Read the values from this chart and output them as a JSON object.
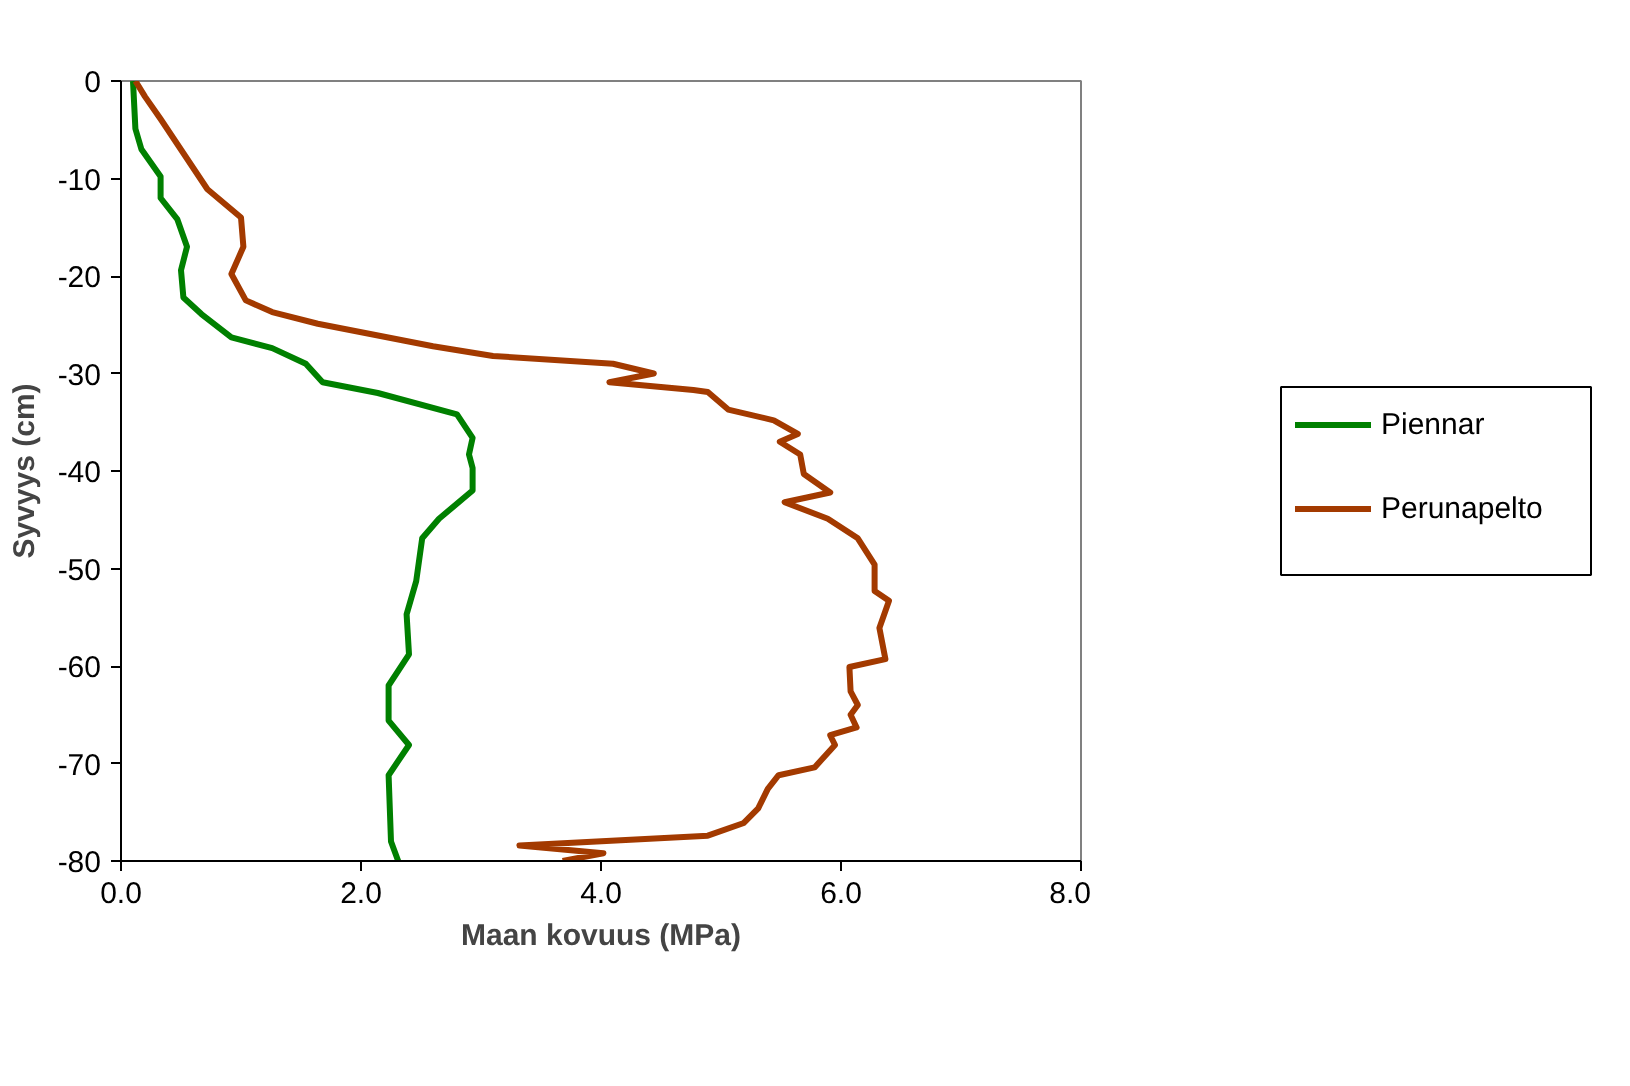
{
  "chart_data": {
    "type": "line",
    "xlabel": "Maan kovuus (MPa)",
    "ylabel": "Syvyys (cm)",
    "xlim": [
      0,
      8
    ],
    "ylim": [
      -80,
      0
    ],
    "xticks": [
      {
        "value": 0,
        "label": "0.0"
      },
      {
        "value": 2,
        "label": "2.0"
      },
      {
        "value": 4,
        "label": "4.0"
      },
      {
        "value": 6,
        "label": "6.0"
      },
      {
        "value": 8,
        "label": "8.0"
      }
    ],
    "yticks": [
      0,
      -10,
      -20,
      -30,
      -40,
      -50,
      -60,
      -70,
      -80
    ],
    "grid": false,
    "legend": "right",
    "marker": "none",
    "line_style": "solid",
    "series": [
      {
        "name": "Piennar",
        "color": "#008000",
        "x": [
          0.1,
          0.12,
          0.17,
          0.33,
          0.33,
          0.47,
          0.55,
          0.5,
          0.52,
          0.67,
          0.92,
          1.26,
          1.54,
          1.68,
          2.14,
          2.8,
          2.93,
          2.9,
          2.93,
          2.93,
          2.65,
          2.51,
          2.46,
          2.38,
          2.4,
          2.23,
          2.23,
          2.4,
          2.23,
          2.25,
          2.31
        ],
        "values": [
          0,
          -4.9,
          -7,
          -9.8,
          -12,
          -14.2,
          -17,
          -19.4,
          -22.2,
          -23.9,
          -26.3,
          -27.4,
          -29,
          -30.9,
          -32,
          -34.2,
          -36.6,
          -38.3,
          -39.7,
          -42,
          -44.9,
          -46.9,
          -51.3,
          -54.7,
          -58.8,
          -62,
          -65.6,
          -68.1,
          -71.2,
          -78,
          -80
        ]
      },
      {
        "name": "Perunapelto",
        "color": "#a33a00",
        "x": [
          0.12,
          0.2,
          0.33,
          0.72,
          1.0,
          1.02,
          0.92,
          1.04,
          1.26,
          1.64,
          2.6,
          3.1,
          4.1,
          4.44,
          4.07,
          4.77,
          4.89,
          5.06,
          5.44,
          5.64,
          5.49,
          5.66,
          5.69,
          5.91,
          5.53,
          5.89,
          6.14,
          6.28,
          6.28,
          6.4,
          6.32,
          6.37,
          6.07,
          6.08,
          6.14,
          6.08,
          6.13,
          5.91,
          5.95,
          5.78,
          5.48,
          5.39,
          5.31,
          5.19,
          4.89,
          3.32,
          4.02,
          3.68
        ],
        "values": [
          0,
          -1.6,
          -3.9,
          -11.1,
          -14,
          -17,
          -19.8,
          -22.5,
          -23.7,
          -24.9,
          -27.2,
          -28.2,
          -29,
          -30,
          -30.9,
          -31.7,
          -31.9,
          -33.7,
          -34.8,
          -36.2,
          -37,
          -38.3,
          -40.3,
          -42.2,
          -43.2,
          -44.9,
          -46.9,
          -49.6,
          -52.3,
          -53.3,
          -56.1,
          -59.3,
          -60.1,
          -62.6,
          -64,
          -65,
          -66.3,
          -67.1,
          -68.1,
          -70.4,
          -71.2,
          -72.6,
          -74.6,
          -76.1,
          -77.4,
          -78.4,
          -79.2,
          -80
        ]
      }
    ]
  }
}
